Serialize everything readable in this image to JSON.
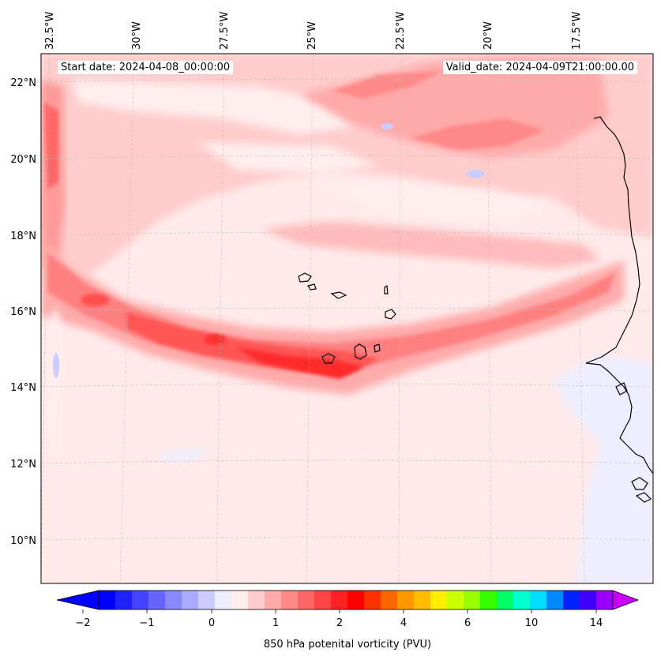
{
  "map": {
    "start_date": "Start date: 2024-04-08_00:00:00",
    "valid_date": "Valid_date: 2024-04-09T21:00:00.00",
    "lon_labels": [
      "32.5°W",
      "30°W",
      "27.5°W",
      "25°W",
      "22.5°W",
      "20°W",
      "17.5°W"
    ],
    "lat_labels": [
      "22°N",
      "20°N",
      "18°N",
      "16°N",
      "14°N",
      "12°N",
      "10°N"
    ],
    "gridlines": true,
    "coastlines": true
  },
  "colorbar": {
    "label": "850 hPa potenital vorticity (PVU)",
    "tick_labels": [
      "−2",
      "−1",
      "0",
      "1",
      "2",
      "4",
      "6",
      "10",
      "14"
    ],
    "extend": "both",
    "colors": [
      "#0000ff",
      "#2222ff",
      "#4444ff",
      "#6666ff",
      "#8888ff",
      "#aaaaff",
      "#ccccff",
      "#eeeeff",
      "#ffeeee",
      "#ffcccc",
      "#ffaaaa",
      "#ff8888",
      "#ff6666",
      "#ff4444",
      "#ff2222",
      "#ff0000",
      "#ff3300",
      "#ff6600",
      "#ff9900",
      "#ffbb00",
      "#ffee00",
      "#ccff00",
      "#99ff00",
      "#33ff00",
      "#00ff66",
      "#00ffcc",
      "#00ddff",
      "#0088ff",
      "#0022ff",
      "#4400ff",
      "#9900ff"
    ],
    "under_color": "#0000ff",
    "over_color": "#cc00ff"
  },
  "chart_data": {
    "type": "heatmap",
    "variable": "850 hPa potenital vorticity (PVU)",
    "lon_range": [
      -33.5,
      -15.5
    ],
    "lat_range": [
      9,
      22.8
    ],
    "features": [
      {
        "feature": "strong PV band",
        "from_lon": -32.5,
        "to_lon": -16,
        "lat_min": 13.7,
        "lat_max": 16.8,
        "peak_pvu": 2.2
      },
      {
        "feature": "northern PV band",
        "from_lon": -26,
        "to_lon": -15.5,
        "lat_min": 19.5,
        "lat_max": 22.5,
        "peak_pvu": 1.2
      },
      {
        "feature": "western edge band",
        "from_lon": -33,
        "to_lon": -32,
        "lat_min": 17,
        "lat_max": 21.5,
        "peak_pvu": 1.3
      },
      {
        "feature": "negative patches near African coast",
        "from_lon": -17,
        "to_lon": -15.5,
        "lat_min": 9,
        "lat_max": 14,
        "peak_pvu": -0.1
      }
    ]
  }
}
